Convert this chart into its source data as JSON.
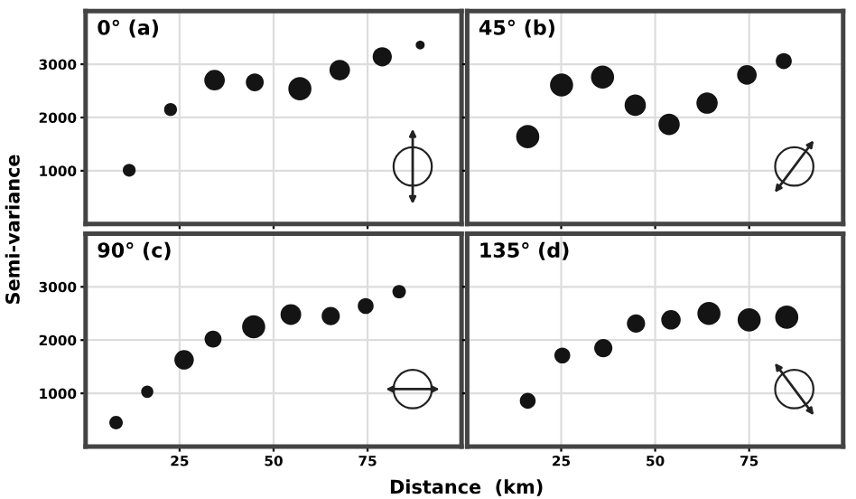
{
  "chart_data": [
    {
      "type": "bubble",
      "title": "0° (a)",
      "ylabel": "Semi-variance",
      "x": [
        11.6,
        22.6,
        34.3,
        45,
        57,
        67.6,
        78.9,
        89
      ],
      "values": [
        1010,
        2150,
        2700,
        2660,
        2540,
        2890,
        3140,
        3360
      ],
      "sizes": [
        0.31,
        0.31,
        0.79,
        0.6,
        1,
        0.79,
        0.69,
        0.15
      ],
      "color": "#141414",
      "xlim": [
        0,
        100
      ],
      "ylim": [
        0,
        4000
      ],
      "xticks": [
        25,
        50,
        75
      ],
      "yticks": [
        1000,
        2000,
        3000
      ],
      "grid": true,
      "tick_labels": "y"
    },
    {
      "type": "bubble",
      "title": "45° (b)",
      "x": [
        16.1,
        25.1,
        36,
        44.7,
        53.7,
        63.8,
        74.4,
        84.2
      ],
      "values": [
        1640,
        2610,
        2760,
        2230,
        1870,
        2270,
        2800,
        3060
      ],
      "sizes": [
        1,
        1,
        1,
        0.85,
        0.85,
        0.85,
        0.72,
        0.48
      ],
      "color": "#141414",
      "xlim": [
        0,
        100
      ],
      "ylim": [
        0,
        4000
      ],
      "xticks": [
        25,
        50,
        75
      ],
      "yticks": [
        1000,
        2000,
        3000
      ],
      "grid": true,
      "tick_labels": false
    },
    {
      "type": "bubble",
      "title": "90° (c)",
      "xlabel": "Distance  (km)",
      "x": [
        8.1,
        16.4,
        26.2,
        33.9,
        44.7,
        54.6,
        65.2,
        74.5,
        83.4
      ],
      "values": [
        450,
        1030,
        1630,
        2020,
        2250,
        2480,
        2450,
        2640,
        2910
      ],
      "sizes": [
        0.34,
        0.28,
        0.71,
        0.54,
        1,
        0.8,
        0.62,
        0.47,
        0.34
      ],
      "color": "#141414",
      "xlim": [
        0,
        100
      ],
      "ylim": [
        0,
        4000
      ],
      "xticks": [
        25,
        50,
        75
      ],
      "yticks": [
        1000,
        2000,
        3000
      ],
      "grid": true
    },
    {
      "type": "bubble",
      "title": "135° (d)",
      "x": [
        16.1,
        25.3,
        36.2,
        44.9,
        54.2,
        64.3,
        75,
        85
      ],
      "values": [
        860,
        1710,
        1850,
        2310,
        2380,
        2500,
        2380,
        2430
      ],
      "sizes": [
        0.47,
        0.47,
        0.62,
        0.62,
        0.71,
        1,
        1,
        1
      ],
      "color": "#141414",
      "xlim": [
        0,
        100
      ],
      "ylim": [
        0,
        4000
      ],
      "xticks": [
        25,
        50,
        75
      ],
      "yticks": [
        1000,
        2000,
        3000
      ],
      "grid": true,
      "tick_labels": "x"
    }
  ]
}
